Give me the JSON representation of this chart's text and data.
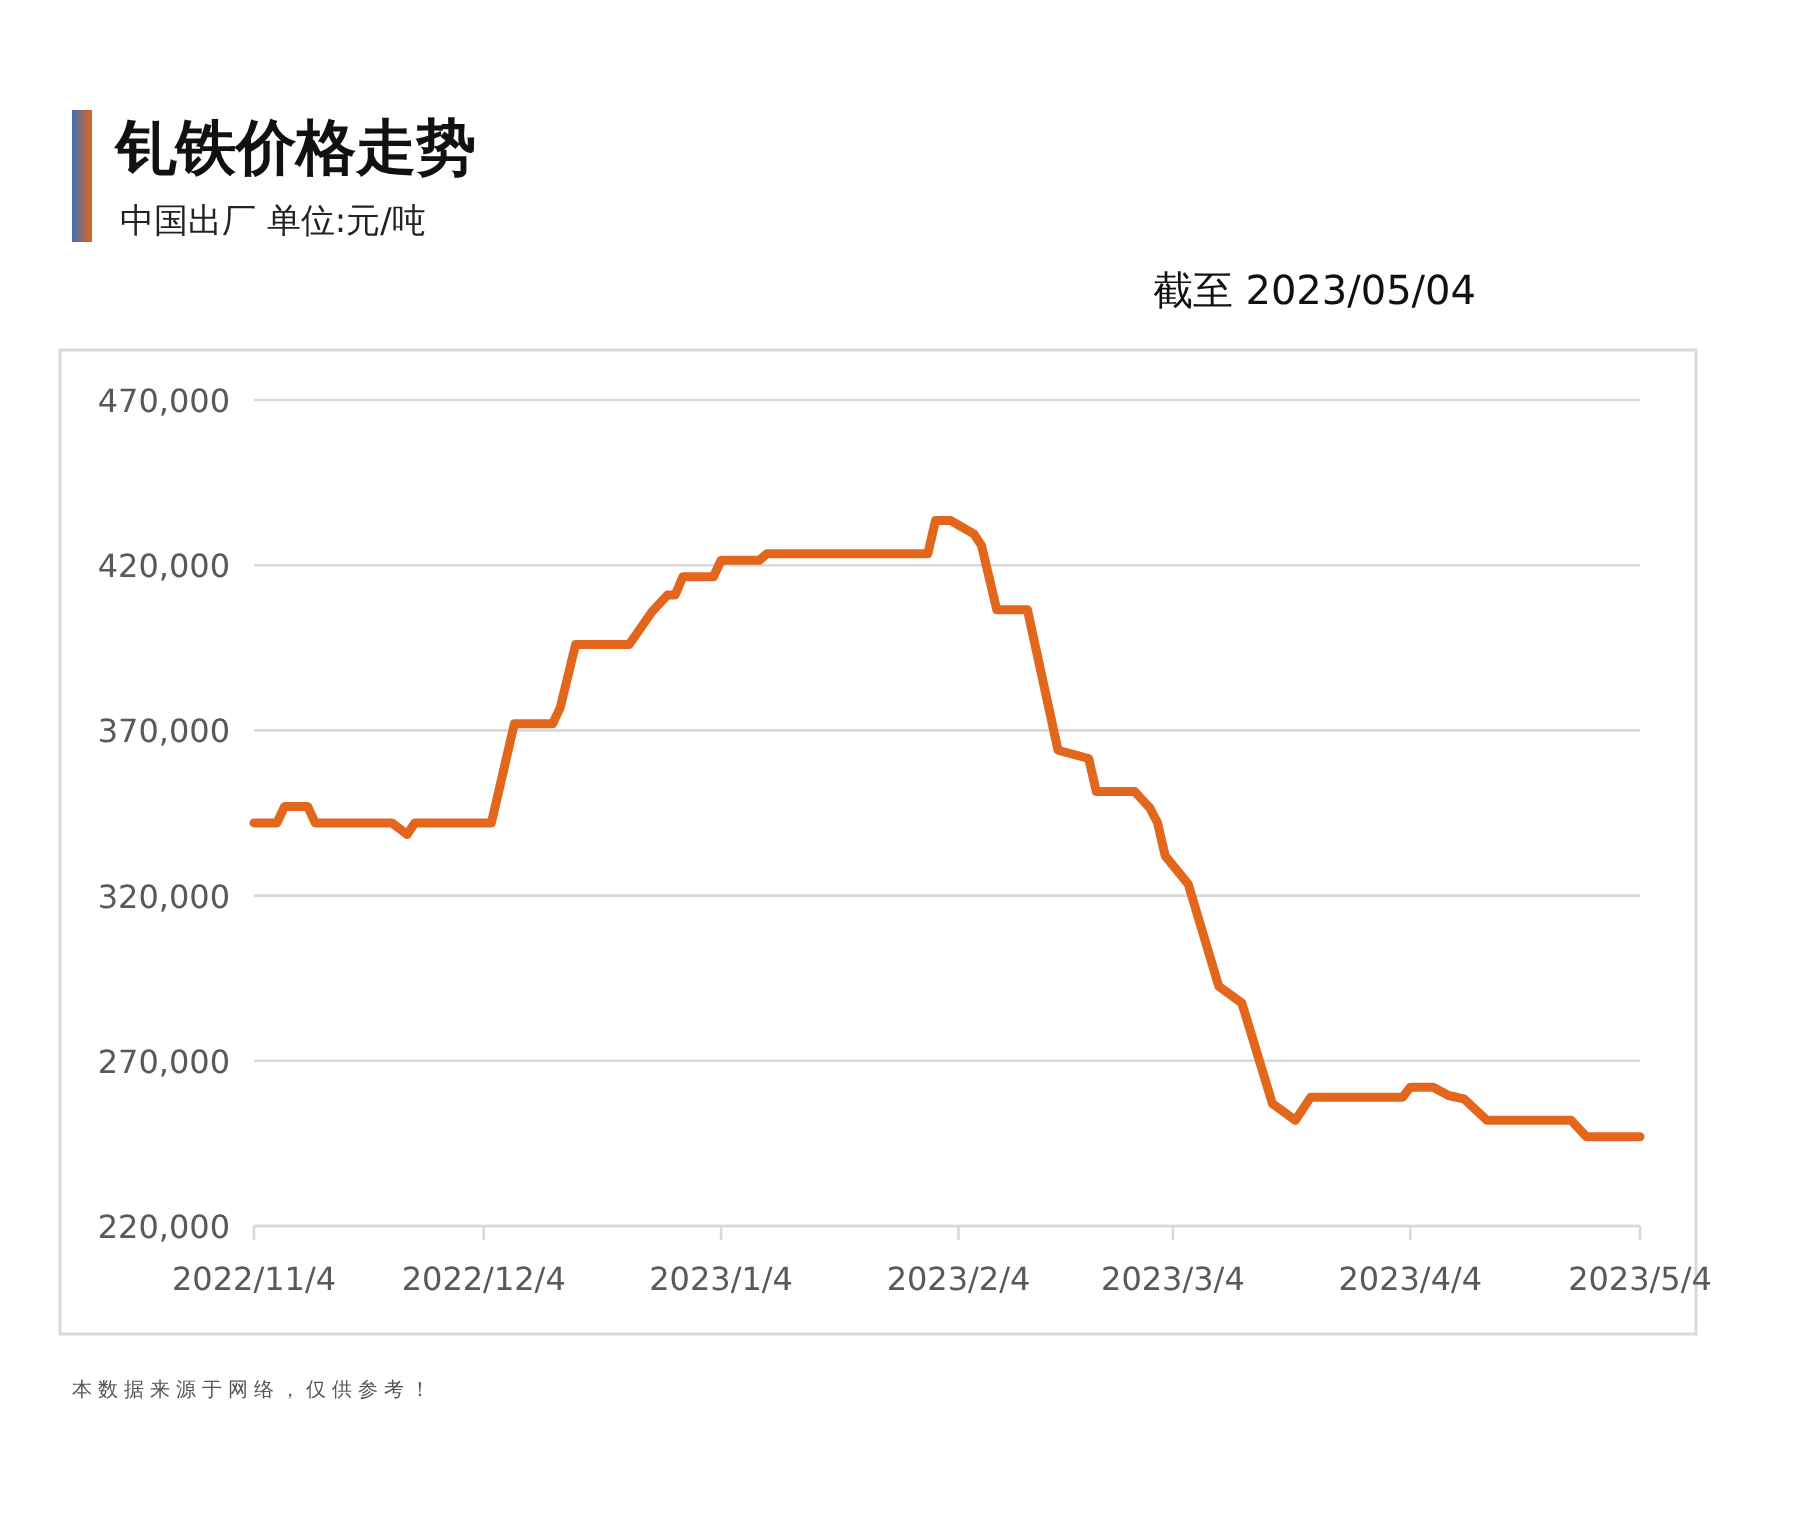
{
  "chart_data": {
    "type": "line",
    "title": "钆铁价格走势",
    "subtitle": "中国出厂  单位:元/吨",
    "annotations": [
      "截至 2023/05/04",
      "本数据来源于网络，仅供参考！"
    ],
    "x": [
      "2022-11-04",
      "2022-11-07",
      "2022-11-08",
      "2022-11-11",
      "2022-11-12",
      "2022-11-22",
      "2022-11-24",
      "2022-11-25",
      "2022-12-05",
      "2022-12-08",
      "2022-12-13",
      "2022-12-14",
      "2022-12-16",
      "2022-12-23",
      "2022-12-26",
      "2022-12-28",
      "2022-12-29",
      "2022-12-30",
      "2023-01-03",
      "2023-01-04",
      "2023-01-09",
      "2023-01-10",
      "2023-01-31",
      "2023-02-01",
      "2023-02-03",
      "2023-02-06",
      "2023-02-07",
      "2023-02-09",
      "2023-02-13",
      "2023-02-17",
      "2023-02-21",
      "2023-02-22",
      "2023-02-27",
      "2023-03-01",
      "2023-03-02",
      "2023-03-03",
      "2023-03-06",
      "2023-03-10",
      "2023-03-13",
      "2023-03-17",
      "2023-03-20",
      "2023-03-22",
      "2023-04-03",
      "2023-04-04",
      "2023-04-07",
      "2023-04-09",
      "2023-04-11",
      "2023-04-14",
      "2023-04-25",
      "2023-04-27",
      "2023-05-04"
    ],
    "series": [
      {
        "color": "#e2661c",
        "values": [
          342000,
          342000,
          347000,
          347000,
          342000,
          342000,
          338500,
          342000,
          342000,
          372000,
          372000,
          377000,
          396000,
          396000,
          406000,
          411000,
          411000,
          416500,
          416500,
          421500,
          421500,
          423500,
          423500,
          433500,
          433500,
          429500,
          426000,
          406500,
          406500,
          364000,
          361500,
          351500,
          351500,
          346500,
          342000,
          332000,
          323500,
          292500,
          287500,
          257000,
          252000,
          259000,
          259000,
          262000,
          262000,
          259500,
          258500,
          252000,
          252000,
          247000,
          247000
        ]
      }
    ],
    "xlim": [
      "2022-11-04",
      "2023-05-04"
    ],
    "xticks": [
      {
        "value": "2022-11-04",
        "label": "2022/11/4"
      },
      {
        "value": "2022-12-04",
        "label": "2022/12/4"
      },
      {
        "value": "2023-01-04",
        "label": "2023/1/4"
      },
      {
        "value": "2023-02-04",
        "label": "2023/2/4"
      },
      {
        "value": "2023-03-04",
        "label": "2023/3/4"
      },
      {
        "value": "2023-04-04",
        "label": "2023/4/4"
      },
      {
        "value": "2023-05-04",
        "label": "2023/5/4"
      }
    ],
    "ylim": [
      220000,
      470000
    ],
    "yticks": [
      {
        "value": 220000,
        "label": "220,000"
      },
      {
        "value": 270000,
        "label": "270,000"
      },
      {
        "value": 320000,
        "label": "320,000"
      },
      {
        "value": 370000,
        "label": "370,000"
      },
      {
        "value": 420000,
        "label": "420,000"
      },
      {
        "value": 470000,
        "label": "470,000"
      }
    ],
    "grid": "y",
    "marker": "none",
    "line_style": "solid"
  }
}
